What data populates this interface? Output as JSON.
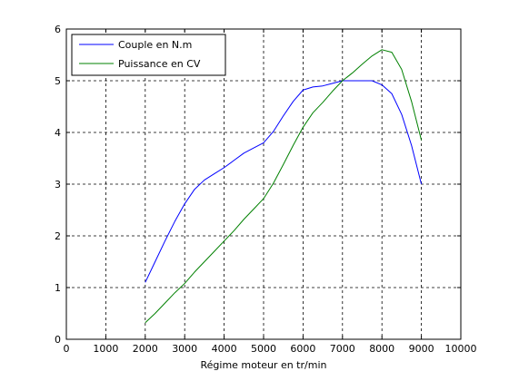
{
  "chart_data": {
    "type": "line",
    "title": "",
    "xlabel": "Régime moteur en tr/min",
    "ylabel": "",
    "xlim": [
      0,
      10000
    ],
    "ylim": [
      0,
      6
    ],
    "xticks": [
      0,
      1000,
      2000,
      3000,
      4000,
      5000,
      6000,
      7000,
      8000,
      9000,
      10000
    ],
    "yticks": [
      0,
      1,
      2,
      3,
      4,
      5,
      6
    ],
    "grid": true,
    "legend_position": "top-left",
    "series": [
      {
        "name": "Couple en N.m",
        "color": "#0000ff",
        "x": [
          2000,
          2250,
          2500,
          2750,
          3000,
          3250,
          3500,
          3750,
          4000,
          4250,
          4500,
          4750,
          5000,
          5250,
          5500,
          5750,
          6000,
          6250,
          6500,
          6750,
          7000,
          7250,
          7500,
          7750,
          8000,
          8250,
          8500,
          8750,
          9000
        ],
        "y": [
          1.1,
          1.5,
          1.9,
          2.28,
          2.62,
          2.9,
          3.08,
          3.2,
          3.32,
          3.46,
          3.6,
          3.7,
          3.8,
          4.02,
          4.32,
          4.6,
          4.82,
          4.88,
          4.9,
          4.95,
          5.0,
          5.0,
          5.0,
          5.0,
          4.92,
          4.75,
          4.35,
          3.75,
          3.0
        ]
      },
      {
        "name": "Puissance en CV",
        "color": "#008000",
        "x": [
          2000,
          2250,
          2500,
          2750,
          3000,
          3250,
          3500,
          3750,
          4000,
          4250,
          4500,
          4750,
          5000,
          5250,
          5500,
          5750,
          6000,
          6250,
          6500,
          6750,
          7000,
          7250,
          7500,
          7750,
          8000,
          8250,
          8500,
          8750,
          9000
        ],
        "y": [
          0.32,
          0.5,
          0.7,
          0.9,
          1.08,
          1.3,
          1.5,
          1.7,
          1.9,
          2.1,
          2.32,
          2.52,
          2.72,
          3.02,
          3.38,
          3.75,
          4.1,
          4.38,
          4.58,
          4.8,
          5.0,
          5.15,
          5.32,
          5.48,
          5.6,
          5.55,
          5.22,
          4.6,
          3.85
        ]
      }
    ]
  }
}
